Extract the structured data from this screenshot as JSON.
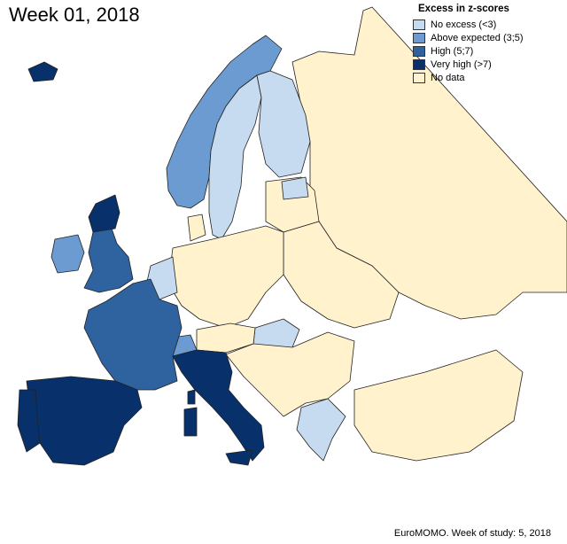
{
  "title": "Week 01, 2018",
  "legend": {
    "title": "Excess in z-scores",
    "items": [
      {
        "label": "No excess (<3)",
        "color": "#c6dbef"
      },
      {
        "label": "Above expected (3;5)",
        "color": "#6b9bd1"
      },
      {
        "label": "High (5;7)",
        "color": "#2e63a0"
      },
      {
        "label": "Very high (>7)",
        "color": "#08306b"
      },
      {
        "label": "No data",
        "color": "#fff2cc"
      }
    ]
  },
  "footer": "EuroMOMO. Week of study: 5, 2018",
  "colors": {
    "no_excess": "#c6dbef",
    "above_expected": "#6b9bd1",
    "high": "#2e63a0",
    "very_high": "#08306b",
    "no_data": "#fff2cc"
  }
}
